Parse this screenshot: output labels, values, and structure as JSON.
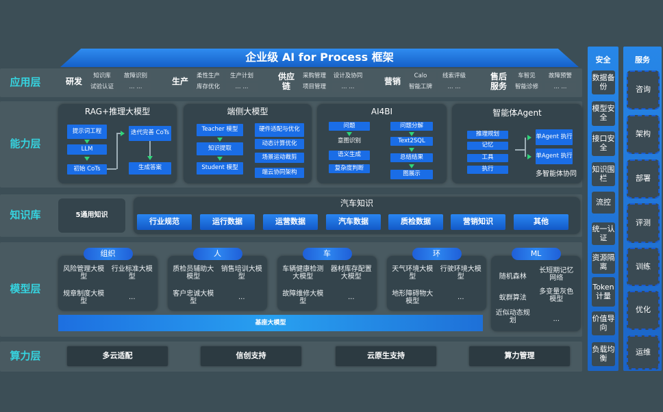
{
  "title": "企业级 AI for Process 框架",
  "layers": {
    "app": "应用层",
    "capability": "能力层",
    "knowledge": "知识库",
    "model": "模型层",
    "compute": "算力层"
  },
  "app": [
    {
      "name": "研发",
      "items": [
        "知识库",
        "故障识别",
        "试验认证",
        "... ..."
      ]
    },
    {
      "name": "生产",
      "items": [
        "柔性生产",
        "生产计划",
        "库存优化",
        "... ..."
      ]
    },
    {
      "name": "供应链",
      "items": [
        "采购管理",
        "设计及协同",
        "项目管理",
        "... ..."
      ]
    },
    {
      "name": "营销",
      "items": [
        "Calo",
        "线索评级",
        "智能工牌",
        "... ..."
      ]
    },
    {
      "name": "售后服务",
      "items": [
        "车智见",
        "故障预警",
        "智能诊修",
        "... ..."
      ]
    }
  ],
  "capability": {
    "rag": {
      "title": "RAG+推理大模型",
      "prompt": "提示词工程",
      "llm": "LLM",
      "init_cots": "初始 CoTs",
      "iter_cots": "迭代完善 CoTs",
      "answer": "生成答案"
    },
    "edge": {
      "title": "端侧大模型",
      "teacher": "Teacher 模型",
      "distill": "知识提取",
      "student": "Student 模型",
      "hw": "硬件适配与优化",
      "dynamic": "动态计算优化",
      "prune": "场景运动裁剪",
      "cloud": "端云协同架构"
    },
    "ai4bi": {
      "title": "AI4BI",
      "question": "问题",
      "intent": "意图识别",
      "semantic": "语义生成",
      "complexity": "复杂度判断",
      "decompose": "问题分解",
      "text2sql": "Text2SQL",
      "summary": "总结结果",
      "chart": "图展示"
    },
    "agent": {
      "title": "智能体Agent",
      "plan": "推理规划",
      "memory": "记忆",
      "tool": "工具",
      "exec": "执行",
      "single1": "单Agent 执行",
      "single2": "单Agent 执行",
      "multi": "多智能体协同"
    }
  },
  "knowledge": {
    "general": "5通用知识",
    "auto_title": "汽车知识",
    "chips": [
      "行业规范",
      "运行数据",
      "运营数据",
      "汽车数据",
      "质检数据",
      "营销知识",
      "其他"
    ]
  },
  "model": {
    "groups": [
      {
        "name": "组织",
        "items": [
          "风险管理大模型",
          "行业标准大模型",
          "规章制度大模型",
          "..."
        ]
      },
      {
        "name": "人",
        "items": [
          "质检员辅助大模型",
          "销售培训大模型",
          "客户忠诚大模型",
          "..."
        ]
      },
      {
        "name": "车",
        "items": [
          "车辆健康检测大模型",
          "器材库存配置大模型",
          "故障维修大模型",
          "..."
        ]
      },
      {
        "name": "环",
        "items": [
          "天气环境大模型",
          "行驶环境大模型",
          "地形障碍物大模型",
          "..."
        ]
      },
      {
        "name": "ML",
        "items": [
          "随机森林",
          "长短期记忆网络",
          "蚁群算法",
          "多变量灰色模型",
          "近似动态规划",
          "..."
        ]
      }
    ],
    "base": "基座大模型"
  },
  "compute": [
    "多云适配",
    "信创支持",
    "云原生支持",
    "算力管理"
  ],
  "security": {
    "title": "安全",
    "items": [
      "数据备份",
      "模型安全",
      "接口安全",
      "知识围栏",
      "流控",
      "统一认证",
      "资源隔离",
      "Token计量",
      "价值导向",
      "负载均衡"
    ]
  },
  "service": {
    "title": "服务",
    "items": [
      "咨询",
      "架构",
      "部署",
      "评测",
      "训练",
      "优化",
      "运维"
    ]
  }
}
